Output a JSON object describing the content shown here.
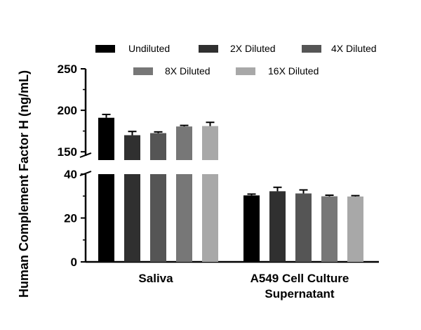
{
  "chart_data": {
    "type": "bar",
    "ylabel": "Human Complement Factor H (ng/mL)",
    "xlabel": "",
    "categories": [
      "Saliva",
      "A549 Cell Culture\nSupernatant"
    ],
    "y_axis_segments": [
      {
        "range": [
          0,
          40
        ],
        "ticks": [
          0,
          20,
          40
        ]
      },
      {
        "range": [
          140,
          250
        ],
        "ticks": [
          150,
          200,
          250
        ]
      }
    ],
    "legend_placement": "top",
    "series": [
      {
        "name": "Undiluted",
        "color": "#000000",
        "values": [
          191,
          30.3
        ],
        "errors": [
          4,
          0.6
        ]
      },
      {
        "name": "2X Diluted",
        "color": "#303030",
        "values": [
          170,
          32.2
        ],
        "errors": [
          4.5,
          1.8
        ]
      },
      {
        "name": "4X Diluted",
        "color": "#555555",
        "values": [
          172.5,
          31.2
        ],
        "errors": [
          1.5,
          1.6
        ]
      },
      {
        "name": "8X Diluted",
        "color": "#777777",
        "values": [
          180.5,
          29.9
        ],
        "errors": [
          1.3,
          0.5
        ]
      },
      {
        "name": "16X Diluted",
        "color": "#a8a8a8",
        "values": [
          181,
          29.8
        ],
        "errors": [
          4.5,
          0.4
        ]
      }
    ]
  }
}
